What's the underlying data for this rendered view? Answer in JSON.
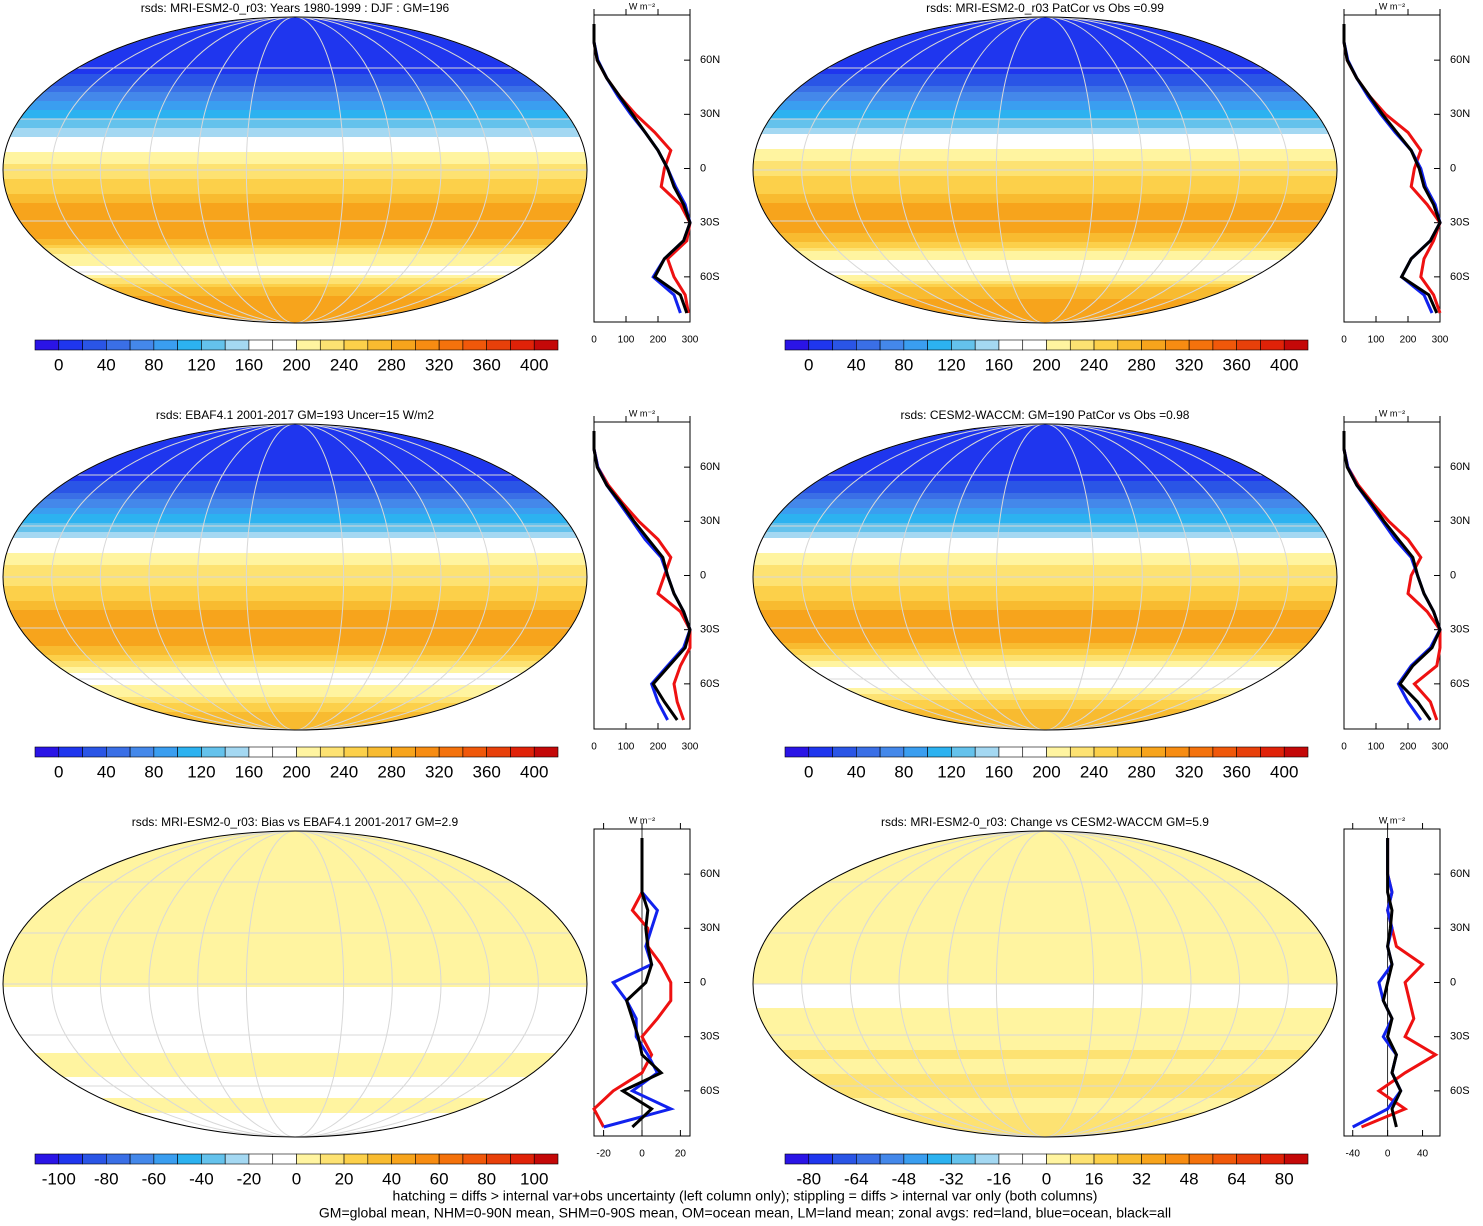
{
  "panels": [
    {
      "title": "rsds: MRI-ESM2-0_r03: Years 1980-1999 : DJF : GM=196",
      "colorbar": {
        "lim": [
          -20,
          420
        ],
        "ticks": [
          0,
          40,
          80,
          120,
          160,
          200,
          240,
          280,
          320,
          360,
          400
        ]
      },
      "zonal": {
        "unit": "W m⁻²",
        "xlim": [
          0,
          300
        ],
        "xticks": [
          0,
          100,
          200,
          300
        ],
        "series": [
          {
            "color": "#ee1111",
            "values": [
              295,
              285,
              250,
              230,
              290,
              300,
              270,
              210,
              220,
              240,
              190,
              130,
              80,
              40,
              10,
              0,
              0
            ]
          },
          {
            "color": "#1122ee",
            "values": [
              270,
              250,
              185,
              220,
              280,
              300,
              285,
              255,
              230,
              200,
              160,
              115,
              75,
              40,
              12,
              0,
              0
            ]
          },
          {
            "color": "#000000",
            "values": [
              290,
              270,
              190,
              220,
              280,
              300,
              280,
              250,
              230,
              200,
              160,
              120,
              80,
              40,
              10,
              0,
              0
            ]
          }
        ]
      }
    },
    {
      "title": "rsds: MRI-ESM2-0_r03 PatCor vs Obs =0.99",
      "colorbar": {
        "lim": [
          -20,
          420
        ],
        "ticks": [
          0,
          40,
          80,
          120,
          160,
          200,
          240,
          280,
          320,
          360,
          400
        ]
      },
      "zonal": {
        "unit": "W m⁻²",
        "xlim": [
          0,
          300
        ],
        "xticks": [
          0,
          100,
          200,
          300
        ],
        "series": [
          {
            "color": "#ee1111",
            "values": [
              300,
              280,
              240,
              250,
              280,
              300,
              260,
              210,
              220,
              240,
              200,
              130,
              80,
              40,
              10,
              0,
              0
            ]
          },
          {
            "color": "#1122ee",
            "values": [
              275,
              250,
              180,
              210,
              270,
              300,
              285,
              255,
              240,
              210,
              160,
              115,
              75,
              40,
              12,
              0,
              0
            ]
          },
          {
            "color": "#000000",
            "values": [
              290,
              265,
              180,
              210,
              270,
              300,
              280,
              250,
              235,
              210,
              165,
              120,
              80,
              40,
              10,
              0,
              0
            ]
          }
        ]
      }
    },
    {
      "title": "rsds: EBAF4.1 2001-2017 GM=193 Uncer=15 W/m2",
      "colorbar": {
        "lim": [
          -20,
          420
        ],
        "ticks": [
          0,
          40,
          80,
          120,
          160,
          200,
          240,
          280,
          320,
          360,
          400
        ]
      },
      "zonal": {
        "unit": "W m⁻²",
        "xlim": [
          0,
          300
        ],
        "xticks": [
          0,
          100,
          200,
          300
        ],
        "series": [
          {
            "color": "#ee1111",
            "values": [
              280,
              260,
              250,
              270,
              300,
              300,
              270,
              200,
              220,
              240,
              200,
              140,
              90,
              45,
              12,
              0,
              0
            ]
          },
          {
            "color": "#1122ee",
            "values": [
              230,
              200,
              180,
              230,
              280,
              300,
              280,
              250,
              230,
              210,
              160,
              120,
              80,
              40,
              12,
              0,
              0
            ]
          },
          {
            "color": "#000000",
            "values": [
              260,
              220,
              185,
              235,
              285,
              300,
              280,
              250,
              230,
              215,
              170,
              125,
              85,
              40,
              10,
              0,
              0
            ]
          }
        ]
      }
    },
    {
      "title": "rsds: CESM2-WACCM: GM=190 PatCor vs Obs =0.98",
      "colorbar": {
        "lim": [
          -20,
          420
        ],
        "ticks": [
          0,
          40,
          80,
          120,
          160,
          200,
          240,
          280,
          320,
          360,
          400
        ]
      },
      "zonal": {
        "unit": "W m⁻²",
        "xlim": [
          0,
          300
        ],
        "xticks": [
          0,
          100,
          200,
          300
        ],
        "series": [
          {
            "color": "#ee1111",
            "values": [
              290,
              270,
              220,
              290,
              300,
              300,
              260,
              200,
              210,
              240,
              200,
              140,
              90,
              45,
              12,
              0,
              0
            ]
          },
          {
            "color": "#1122ee",
            "values": [
              240,
              200,
              170,
              210,
              270,
              300,
              280,
              250,
              230,
              210,
              160,
              120,
              80,
              40,
              12,
              0,
              0
            ]
          },
          {
            "color": "#000000",
            "values": [
              270,
              230,
              175,
              215,
              275,
              300,
              280,
              250,
              230,
              215,
              170,
              125,
              85,
              40,
              10,
              0,
              0
            ]
          }
        ]
      }
    },
    {
      "title": "rsds: MRI-ESM2-0_r03: Bias vs EBAF4.1 2001-2017 GM=2.9",
      "colorbar": {
        "lim": [
          -110,
          110
        ],
        "ticks": [
          -100,
          -80,
          -60,
          -40,
          -20,
          0,
          20,
          40,
          60,
          80,
          100
        ]
      },
      "zonal": {
        "unit": "W m⁻²",
        "xlim": [
          -25,
          25
        ],
        "xticks": [
          -20,
          0,
          20
        ],
        "series": [
          {
            "color": "#ee1111",
            "values": [
              -20,
              -25,
              -15,
              0,
              5,
              0,
              8,
              15,
              15,
              10,
              3,
              3,
              -5,
              0,
              0,
              0,
              0
            ]
          },
          {
            "color": "#1122ee",
            "values": [
              -20,
              15,
              -5,
              8,
              3,
              -3,
              -3,
              -8,
              -15,
              5,
              2,
              5,
              8,
              0,
              0,
              0,
              0
            ]
          },
          {
            "color": "#000000",
            "values": [
              -5,
              5,
              -10,
              10,
              0,
              -2,
              -5,
              -8,
              2,
              5,
              3,
              2,
              3,
              0,
              0,
              0,
              0
            ]
          }
        ]
      }
    },
    {
      "title": "rsds: MRI-ESM2-0_r03: Change vs CESM2-WACCM GM=5.9",
      "colorbar": {
        "lim": [
          -88,
          88
        ],
        "ticks": [
          -80,
          -64,
          -48,
          -32,
          -16,
          0,
          16,
          32,
          48,
          64,
          80
        ]
      },
      "zonal": {
        "unit": "W m⁻²",
        "xlim": [
          -50,
          60
        ],
        "xticks": [
          -40,
          0,
          40
        ],
        "series": [
          {
            "color": "#ee1111",
            "values": [
              -30,
              20,
              -10,
              20,
              55,
              20,
              30,
              25,
              20,
              40,
              10,
              5,
              0,
              5,
              0,
              0,
              0
            ]
          },
          {
            "color": "#1122ee",
            "values": [
              -40,
              0,
              15,
              5,
              10,
              -5,
              5,
              -5,
              -10,
              5,
              0,
              5,
              0,
              5,
              0,
              0,
              0
            ]
          },
          {
            "color": "#000000",
            "values": [
              10,
              5,
              15,
              5,
              10,
              0,
              5,
              -5,
              0,
              5,
              0,
              3,
              5,
              0,
              0,
              0,
              0
            ]
          }
        ]
      }
    }
  ],
  "lat": [
    -80,
    -70,
    -60,
    -50,
    -40,
    -30,
    -20,
    -10,
    0,
    10,
    20,
    30,
    40,
    50,
    60,
    70,
    80
  ],
  "ylim": [
    -85,
    85
  ],
  "yticks": [
    {
      "value": 60,
      "label": "60N"
    },
    {
      "value": 30,
      "label": "30N"
    },
    0,
    {
      "value": -30,
      "label": "30S"
    },
    {
      "value": -60,
      "label": "60S"
    }
  ],
  "palette": [
    "#2a14e6",
    "#1f36ee",
    "#2a55e6",
    "#3a6fe6",
    "#4488ea",
    "#3a9ef0",
    "#2cb2f0",
    "#64c2ec",
    "#a4d8f2",
    "#ffffff",
    "#ffffff",
    "#fff4a0",
    "#fde272",
    "#fcd04a",
    "#f8bb30",
    "#f7a41c",
    "#f78c12",
    "#f4720c",
    "#f0580a",
    "#e8400a",
    "#e02208",
    "#c40808"
  ],
  "footer": [
    "hatching = diffs > internal var+obs uncertainty (left column only); stippling = diffs > internal var only (both columns)",
    "GM=global mean, NHM=0-90N mean, SHM=0-90S mean, OM=ocean mean, LM=land mean; zonal avgs: red=land, blue=ocean, black=all"
  ]
}
